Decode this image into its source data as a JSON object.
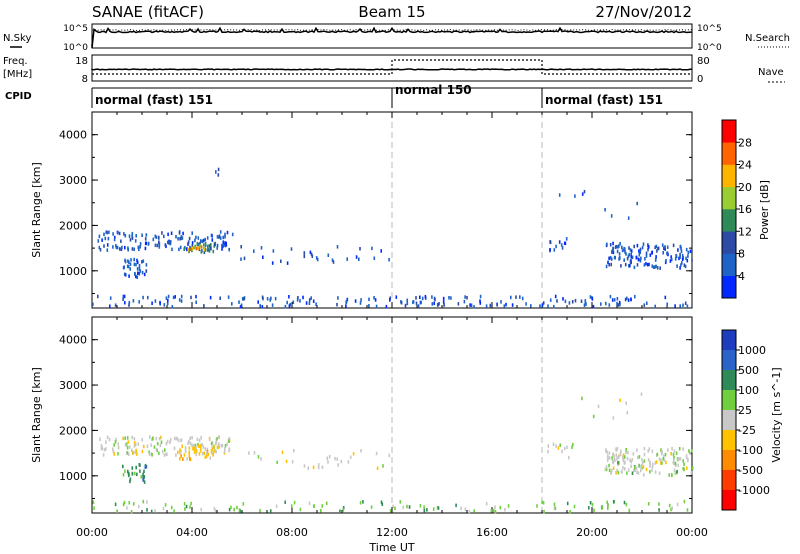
{
  "header": {
    "station": "SANAE (fitACF)",
    "beam": "Beam 15",
    "date": "27/Nov/2012"
  },
  "noise_panel": {
    "left_label": "N.Sky",
    "right_label": "N.Search",
    "tick_top": "10^5",
    "tick_bottom": "10^0"
  },
  "freq_panel": {
    "left_label_1": "Freq.",
    "left_label_2": "[MHz]",
    "left_tick_top": "18",
    "left_tick_bottom": "8",
    "right_label": "Nave",
    "right_tick_top": "80",
    "right_tick_bottom": "0"
  },
  "cpid": {
    "label": "CPID",
    "segments": [
      {
        "name": "normal (fast) 151",
        "start_hour": 0,
        "end_hour": 12
      },
      {
        "name": "normal 150",
        "start_hour": 12,
        "end_hour": 18
      },
      {
        "name": "normal (fast) 151",
        "start_hour": 18,
        "end_hour": 24
      }
    ]
  },
  "chart_data": [
    {
      "type": "scatter",
      "title": "",
      "xlabel": "Time UT",
      "ylabel": "Slant Range [km]",
      "xlim": [
        0,
        24
      ],
      "ylim": [
        180,
        4500
      ],
      "x_ticks": [
        "00:00",
        "04:00",
        "08:00",
        "12:00",
        "16:00",
        "20:00",
        "00:00"
      ],
      "y_ticks": [
        1000,
        2000,
        3000,
        4000
      ],
      "colorbar": {
        "label": "Power [dB]",
        "range": [
          0,
          32
        ],
        "ticks": [
          "4",
          "8",
          "12",
          "16",
          "20",
          "24",
          "28"
        ],
        "colors": [
          "#0028ff",
          "#1e64c8",
          "#2d4ba5",
          "#2e8b57",
          "#9acd32",
          "#ffb400",
          "#ff6400",
          "#ff0000"
        ]
      },
      "clusters": [
        {
          "t0": 0.2,
          "t1": 5.6,
          "r0": 1450,
          "r1": 1850,
          "value": 6,
          "n": 140
        },
        {
          "t0": 1.2,
          "t1": 2.2,
          "r0": 850,
          "r1": 1250,
          "value": 6,
          "n": 35
        },
        {
          "t0": 3.6,
          "t1": 4.9,
          "r0": 1400,
          "r1": 1600,
          "value": 14,
          "n": 35
        },
        {
          "t0": 3.8,
          "t1": 4.6,
          "r0": 1450,
          "r1": 1550,
          "value": 22,
          "n": 10
        },
        {
          "t0": 5.8,
          "t1": 12.0,
          "r0": 1150,
          "r1": 1550,
          "value": 6,
          "n": 30
        },
        {
          "t0": 18.2,
          "t1": 19.2,
          "r0": 1350,
          "r1": 1700,
          "value": 6,
          "n": 12
        },
        {
          "t0": 20.5,
          "t1": 24.0,
          "r0": 1050,
          "r1": 1600,
          "value": 6,
          "n": 140
        },
        {
          "t0": 0.0,
          "t1": 24.0,
          "r0": 200,
          "r1": 430,
          "value": 6,
          "n": 190
        },
        {
          "t0": 18.5,
          "t1": 22.0,
          "r0": 2100,
          "r1": 2900,
          "value": 6,
          "n": 8
        },
        {
          "t0": 4.9,
          "t1": 5.1,
          "r0": 3100,
          "r1": 3250,
          "value": 6,
          "n": 3
        }
      ]
    },
    {
      "type": "scatter",
      "title": "",
      "xlabel": "Time UT",
      "ylabel": "Slant Range [km]",
      "xlim": [
        0,
        24
      ],
      "ylim": [
        180,
        4500
      ],
      "x_ticks": [
        "00:00",
        "04:00",
        "08:00",
        "12:00",
        "16:00",
        "20:00",
        "00:00"
      ],
      "y_ticks": [
        1000,
        2000,
        3000,
        4000
      ],
      "colorbar": {
        "label": "Velocity [m s^-1]",
        "ticks": [
          "1000",
          "500",
          "100",
          "25",
          "-25",
          "-100",
          "-500",
          "-1000"
        ],
        "colors": [
          "#1e3cbe",
          "#2b64c8",
          "#2e8b57",
          "#6fcf3f",
          "#c8c8c8",
          "#ffc200",
          "#ff8c00",
          "#ff3c00",
          "#ff0000"
        ]
      },
      "clusters": [
        {
          "t0": 0.2,
          "t1": 5.6,
          "r0": 1450,
          "r1": 1850,
          "value": 4,
          "n": 140
        },
        {
          "t0": 1.2,
          "t1": 2.2,
          "r0": 850,
          "r1": 1250,
          "value": 2,
          "n": 30
        },
        {
          "t0": 3.4,
          "t1": 5.0,
          "r0": 1350,
          "r1": 1650,
          "value": 5,
          "n": 40
        },
        {
          "t0": 5.8,
          "t1": 12.0,
          "r0": 1150,
          "r1": 1550,
          "value": 4,
          "n": 30
        },
        {
          "t0": 18.2,
          "t1": 19.2,
          "r0": 1350,
          "r1": 1700,
          "value": 4,
          "n": 12
        },
        {
          "t0": 20.5,
          "t1": 24.0,
          "r0": 1050,
          "r1": 1600,
          "value": 4,
          "n": 140
        },
        {
          "t0": 21.0,
          "t1": 23.8,
          "r0": 1000,
          "r1": 1300,
          "value": 3,
          "n": 18
        },
        {
          "t0": 0.0,
          "t1": 24.0,
          "r0": 200,
          "r1": 430,
          "value": 3,
          "n": 120
        },
        {
          "t0": 18.5,
          "t1": 22.0,
          "r0": 2100,
          "r1": 2900,
          "value": 4,
          "n": 8
        }
      ]
    }
  ]
}
